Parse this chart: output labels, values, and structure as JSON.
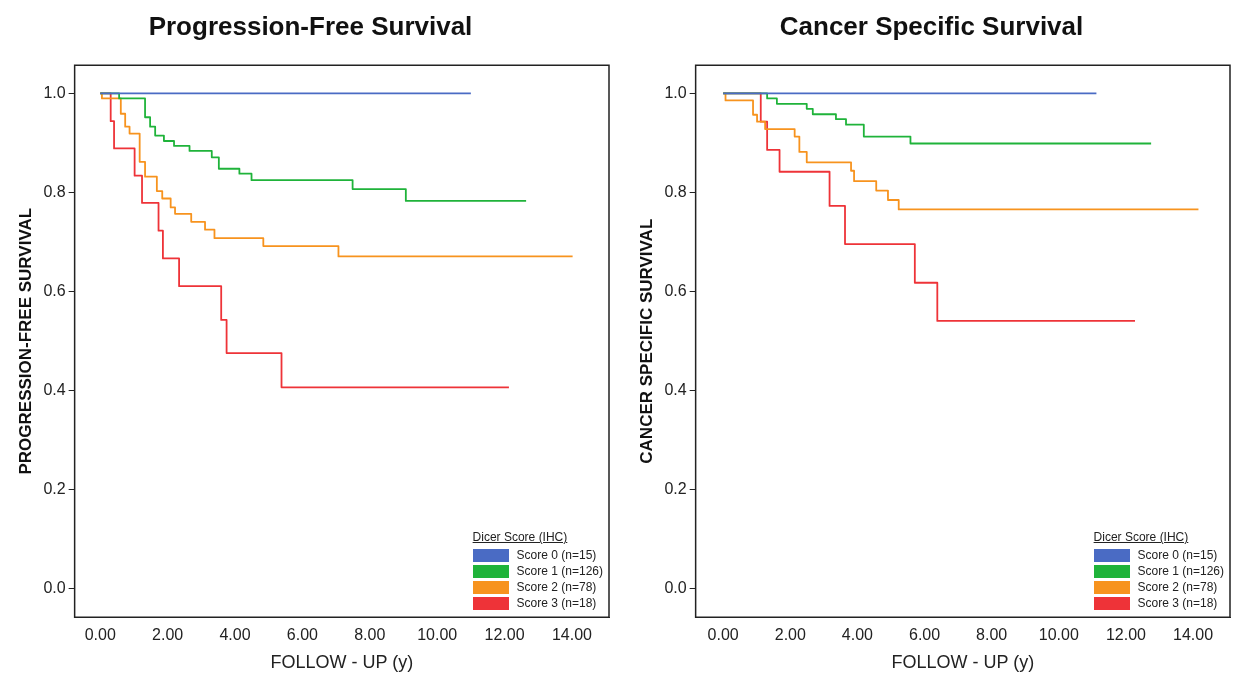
{
  "chart_data": [
    {
      "type": "step",
      "title": "Progression-Free Survival",
      "xlabel": "FOLLOW - UP (y)",
      "ylabel": "PROGRESSION-FREE SURVIVAL",
      "legend_title": "Dicer Score (IHC)",
      "legend": "bottom right",
      "grid": false,
      "xlim": [
        -0.76,
        15.1
      ],
      "ylim": [
        -0.057,
        1.057
      ],
      "xticks": [
        {
          "value": 0,
          "label": "0.00"
        },
        {
          "value": 2,
          "label": "2.00"
        },
        {
          "value": 4,
          "label": "4.00"
        },
        {
          "value": 6,
          "label": "6.00"
        },
        {
          "value": 8,
          "label": "8.00"
        },
        {
          "value": 10,
          "label": "10.00"
        },
        {
          "value": 12,
          "label": "12.00"
        },
        {
          "value": 14,
          "label": "14.00"
        }
      ],
      "yticks": [
        {
          "value": 0,
          "label": "0.0"
        },
        {
          "value": 0.2,
          "label": "0.2"
        },
        {
          "value": 0.4,
          "label": "0.4"
        },
        {
          "value": 0.6,
          "label": "0.6"
        },
        {
          "value": 0.8,
          "label": "0.8"
        },
        {
          "value": 1,
          "label": "1.0"
        }
      ],
      "series": [
        {
          "name": "Score 0 (n=15)",
          "color": "#4a6bc4",
          "x": [
            0,
            11.0
          ],
          "values": [
            1.0,
            1.0
          ]
        },
        {
          "name": "Score 1 (n=126)",
          "color": "#1fb33a",
          "x": [
            0,
            0.56,
            1.33,
            1.48,
            1.63,
            1.89,
            2.19,
            2.65,
            3.31,
            3.52,
            4.13,
            4.49,
            7.49,
            9.07,
            12.64
          ],
          "values": [
            1.0,
            0.99,
            0.952,
            0.933,
            0.915,
            0.904,
            0.894,
            0.884,
            0.871,
            0.848,
            0.838,
            0.825,
            0.807,
            0.783,
            0.783
          ]
        },
        {
          "name": "Score 2 (n=78)",
          "color": "#f7931e",
          "x": [
            0,
            0.05,
            0.61,
            0.74,
            0.87,
            1.17,
            1.33,
            1.68,
            1.84,
            2.09,
            2.22,
            2.7,
            3.11,
            3.39,
            4.84,
            7.07,
            14.02
          ],
          "values": [
            1.0,
            0.99,
            0.959,
            0.933,
            0.919,
            0.862,
            0.832,
            0.803,
            0.788,
            0.77,
            0.757,
            0.741,
            0.725,
            0.708,
            0.692,
            0.671,
            0.671
          ]
        },
        {
          "name": "Score 3 (n=18)",
          "color": "#ee3338",
          "x": [
            0,
            0.31,
            0.41,
            1.02,
            1.24,
            1.73,
            1.86,
            2.34,
            3.59,
            3.75,
            5.38,
            12.13
          ],
          "values": [
            1.0,
            0.944,
            0.889,
            0.834,
            0.779,
            0.723,
            0.667,
            0.611,
            0.543,
            0.476,
            0.407,
            0.407
          ]
        }
      ]
    },
    {
      "type": "step",
      "title": "Cancer Specific Survival",
      "xlabel": "FOLLOW - UP (y)",
      "ylabel": "CANCER SPECIFIC SURVIVAL",
      "legend_title": "Dicer Score (IHC)",
      "legend": "bottom right",
      "grid": false,
      "xlim": [
        -0.82,
        15.1
      ],
      "ylim": [
        -0.057,
        1.057
      ],
      "xticks": [
        {
          "value": 0,
          "label": "0.00"
        },
        {
          "value": 2,
          "label": "2.00"
        },
        {
          "value": 4,
          "label": "4.00"
        },
        {
          "value": 6,
          "label": "6.00"
        },
        {
          "value": 8,
          "label": "8.00"
        },
        {
          "value": 10,
          "label": "10.00"
        },
        {
          "value": 12,
          "label": "12.00"
        },
        {
          "value": 14,
          "label": "14.00"
        }
      ],
      "yticks": [
        {
          "value": 0,
          "label": "0.0"
        },
        {
          "value": 0.2,
          "label": "0.2"
        },
        {
          "value": 0.4,
          "label": "0.4"
        },
        {
          "value": 0.6,
          "label": "0.6"
        },
        {
          "value": 0.8,
          "label": "0.8"
        },
        {
          "value": 1,
          "label": "1.0"
        }
      ],
      "series": [
        {
          "name": "Score 0 (n=15)",
          "color": "#4a6bc4",
          "x": [
            0,
            11.12
          ],
          "values": [
            1.0,
            1.0
          ]
        },
        {
          "name": "Score 1 (n=126)",
          "color": "#1fb33a",
          "x": [
            0,
            1.31,
            1.6,
            2.49,
            2.67,
            3.36,
            3.66,
            4.19,
            5.58,
            12.75
          ],
          "values": [
            1.0,
            0.99,
            0.979,
            0.969,
            0.958,
            0.948,
            0.937,
            0.913,
            0.899,
            0.899
          ]
        },
        {
          "name": "Score 2 (n=78)",
          "color": "#f7931e",
          "x": [
            0,
            0.07,
            0.89,
            1.01,
            1.25,
            2.13,
            2.27,
            2.49,
            3.81,
            3.9,
            4.56,
            4.91,
            5.23,
            14.16
          ],
          "values": [
            1.0,
            0.986,
            0.957,
            0.943,
            0.928,
            0.913,
            0.882,
            0.861,
            0.844,
            0.823,
            0.804,
            0.785,
            0.766,
            0.766
          ]
        },
        {
          "name": "Score 3 (n=18)",
          "color": "#ee3338",
          "x": [
            0,
            1.12,
            1.31,
            1.68,
            3.17,
            3.63,
            5.71,
            6.38,
            12.27
          ],
          "values": [
            1.0,
            0.943,
            0.886,
            0.842,
            0.773,
            0.696,
            0.618,
            0.541,
            0.541
          ]
        }
      ]
    }
  ]
}
